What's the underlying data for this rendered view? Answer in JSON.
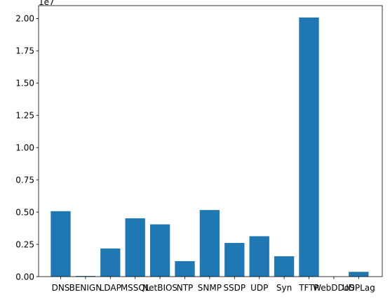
{
  "chart_data": {
    "type": "bar",
    "categories": [
      "DNS",
      "BENIGN",
      "LDAP",
      "MSSQL",
      "NetBIOS",
      "NTP",
      "SNMP",
      "SSDP",
      "UDP",
      "Syn",
      "TFTP",
      "WebDDoS",
      "UDPLag"
    ],
    "values": [
      5070000,
      50000,
      2180000,
      4520000,
      4050000,
      1200000,
      5160000,
      2610000,
      3130000,
      1580000,
      20080000,
      400,
      370000
    ],
    "title": "",
    "xlabel": "",
    "ylabel": "",
    "ylim": [
      0,
      21000000
    ],
    "y_ticks": [
      0,
      2500000,
      5000000,
      7500000,
      10000000,
      12500000,
      15000000,
      17500000,
      20000000
    ],
    "y_tick_labels": [
      "0.00",
      "0.25",
      "0.50",
      "0.75",
      "1.00",
      "1.25",
      "1.50",
      "1.75",
      "2.00"
    ],
    "y_offset_label": "1e7",
    "bar_color": "#1f77b4",
    "grid": false,
    "legend": "none"
  }
}
